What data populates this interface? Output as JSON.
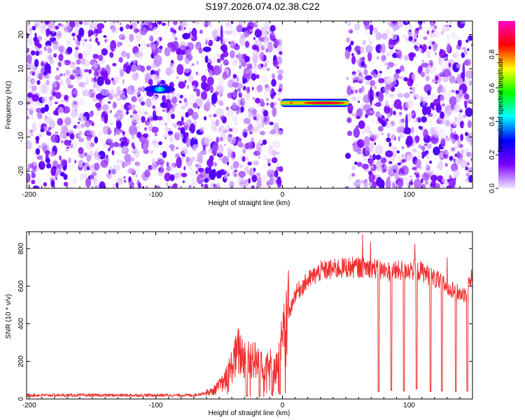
{
  "figure": {
    "title": "S197.2026.074.02.38.C22"
  },
  "chart_data": [
    {
      "type": "heatmap",
      "title": "",
      "xlabel": "Height of straight line (km)",
      "ylabel": "Frequency (Hz)",
      "xlim": [
        -202,
        150
      ],
      "ylim": [
        -25,
        24
      ],
      "xticks": [
        -200,
        -100,
        0,
        100
      ],
      "yticks": [
        -20,
        -10,
        0,
        10,
        20
      ],
      "blank_x_range": [
        -1,
        51
      ],
      "strong_signal": {
        "x_start": 0,
        "x_end": 51,
        "frequency": 0,
        "peak_x": 33,
        "peak_amplitude": 1.0
      },
      "blob": {
        "x": -97,
        "frequency": 4,
        "amplitude": 0.45
      },
      "background_amplitude_range": [
        0.0,
        0.2
      ],
      "colorbar": {
        "label": "Normalized spectral amplitude",
        "range": [
          0.0,
          1.0
        ],
        "ticks": [
          0.0,
          0.2,
          0.4,
          0.6,
          0.8
        ],
        "tick_labels": [
          "0.0",
          "0.2",
          "0.4",
          "0.6",
          "0.8"
        ],
        "colors": [
          "#f3e6ff",
          "#7a00ff",
          "#0000ff",
          "#00ffff",
          "#00ff00",
          "#ffff00",
          "#ff0000",
          "#ff00c8"
        ]
      }
    },
    {
      "type": "line",
      "title": "",
      "xlabel": "Height of straight line (km)",
      "ylabel": "SNR (10 * v/v)",
      "xlim": [
        -202,
        150
      ],
      "ylim": [
        0,
        890
      ],
      "xticks": [
        -200,
        -100,
        0,
        100
      ],
      "yticks": [
        0,
        200,
        400,
        600,
        800
      ],
      "color": "#f03030",
      "series": [
        {
          "name": "SNR",
          "x": [
            -202,
            -150,
            -100,
            -70,
            -55,
            -45,
            -40,
            -35,
            -30,
            -25,
            -20,
            -15,
            -10,
            -5,
            0,
            5,
            10,
            20,
            30,
            40,
            50,
            60,
            70,
            75,
            80,
            90,
            100,
            110,
            120,
            130,
            140,
            145,
            150
          ],
          "values": [
            20,
            20,
            20,
            20,
            40,
            100,
            180,
            250,
            220,
            230,
            190,
            220,
            180,
            160,
            300,
            450,
            560,
            630,
            680,
            690,
            700,
            700,
            700,
            690,
            680,
            680,
            690,
            680,
            640,
            600,
            560,
            560,
            670
          ]
        }
      ],
      "dropouts": [
        {
          "x": 76,
          "values": [
            40,
            40
          ]
        },
        {
          "x": 86,
          "values": [
            50,
            50
          ]
        },
        {
          "x": 96,
          "values": [
            45,
            45
          ]
        },
        {
          "x": 106,
          "values": [
            50,
            50
          ]
        },
        {
          "x": 117,
          "values": [
            45,
            45
          ]
        },
        {
          "x": 126,
          "values": [
            45,
            45
          ]
        },
        {
          "x": 137,
          "values": [
            40,
            40
          ]
        },
        {
          "x": 146,
          "values": [
            45,
            45
          ]
        },
        {
          "x": -8,
          "values": [
            20,
            20
          ]
        },
        {
          "x": -18,
          "values": [
            10,
            10
          ]
        },
        {
          "x": -28,
          "values": [
            15,
            15
          ]
        },
        {
          "x": -2,
          "values": [
            25,
            25
          ]
        }
      ]
    }
  ]
}
